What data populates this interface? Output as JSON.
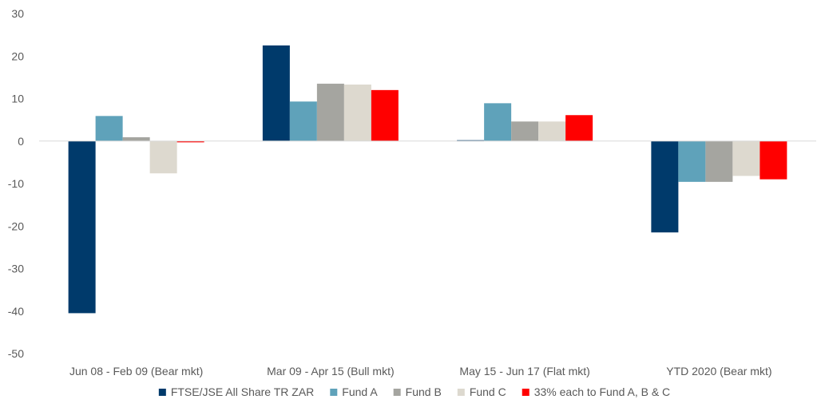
{
  "chart_data": {
    "type": "bar",
    "categories": [
      "Jun 08 - Feb 09 (Bear mkt)",
      "Mar 09 - Apr 15 (Bull mkt)",
      "May 15 - Jun 17 (Flat mkt)",
      "YTD 2020 (Bear mkt)"
    ],
    "series": [
      {
        "name": "FTSE/JSE All Share TR ZAR",
        "color": "#003A6B",
        "values": [
          -40.5,
          22.5,
          0.2,
          -21.5
        ]
      },
      {
        "name": "Fund A",
        "color": "#5FA2BA",
        "values": [
          5.9,
          9.3,
          8.9,
          -9.6
        ]
      },
      {
        "name": "Fund B",
        "color": "#A5A5A0",
        "values": [
          0.9,
          13.5,
          4.6,
          -9.6
        ]
      },
      {
        "name": "Fund C",
        "color": "#DDD9CF",
        "values": [
          -7.6,
          13.3,
          4.6,
          -8.2
        ]
      },
      {
        "name": "33% each to Fund A, B & C",
        "color": "#FF0000",
        "values": [
          -0.3,
          12.0,
          6.1,
          -9.0
        ]
      }
    ],
    "ylim": [
      -50,
      30
    ],
    "yticks": [
      30,
      20,
      10,
      0,
      -10,
      -20,
      -30,
      -40,
      -50
    ],
    "grid": false,
    "legend_position": "bottom"
  }
}
